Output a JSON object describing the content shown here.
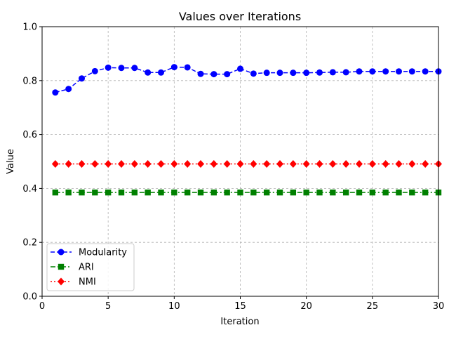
{
  "chart_data": {
    "type": "line",
    "title": "Values over Iterations",
    "xlabel": "Iteration",
    "ylabel": "Value",
    "xlim": [
      0,
      30
    ],
    "ylim": [
      0,
      1.0
    ],
    "xticks": [
      "0",
      "5",
      "10",
      "15",
      "20",
      "25",
      "30"
    ],
    "yticks": [
      "0.0",
      "0.2",
      "0.4",
      "0.6",
      "0.8",
      "1.0"
    ],
    "grid": true,
    "legend_position": "lower-left",
    "x": [
      1,
      2,
      3,
      4,
      5,
      6,
      7,
      8,
      9,
      10,
      11,
      12,
      13,
      14,
      15,
      16,
      17,
      18,
      19,
      20,
      21,
      22,
      23,
      24,
      25,
      26,
      27,
      28,
      29,
      30
    ],
    "series": [
      {
        "name": "Modularity",
        "color": "#0000ff",
        "marker": "circle",
        "line_style": "dashed",
        "values": [
          0.756,
          0.769,
          0.808,
          0.835,
          0.848,
          0.847,
          0.847,
          0.83,
          0.83,
          0.85,
          0.849,
          0.825,
          0.824,
          0.824,
          0.844,
          0.826,
          0.829,
          0.829,
          0.829,
          0.829,
          0.83,
          0.831,
          0.831,
          0.834,
          0.834,
          0.834,
          0.834,
          0.834,
          0.834,
          0.834
        ]
      },
      {
        "name": "ARI",
        "color": "#008000",
        "marker": "square",
        "line_style": "dash-dot",
        "values": [
          0.385,
          0.385,
          0.385,
          0.385,
          0.385,
          0.385,
          0.385,
          0.385,
          0.385,
          0.385,
          0.385,
          0.385,
          0.385,
          0.385,
          0.385,
          0.385,
          0.385,
          0.385,
          0.385,
          0.385,
          0.385,
          0.385,
          0.385,
          0.385,
          0.385,
          0.385,
          0.385,
          0.385,
          0.385,
          0.385
        ]
      },
      {
        "name": "NMI",
        "color": "#ff0000",
        "marker": "diamond",
        "line_style": "dotted",
        "values": [
          0.491,
          0.491,
          0.491,
          0.491,
          0.491,
          0.491,
          0.491,
          0.491,
          0.491,
          0.491,
          0.491,
          0.491,
          0.491,
          0.491,
          0.491,
          0.491,
          0.491,
          0.491,
          0.491,
          0.491,
          0.491,
          0.491,
          0.491,
          0.491,
          0.491,
          0.491,
          0.491,
          0.491,
          0.491,
          0.491
        ]
      }
    ]
  }
}
